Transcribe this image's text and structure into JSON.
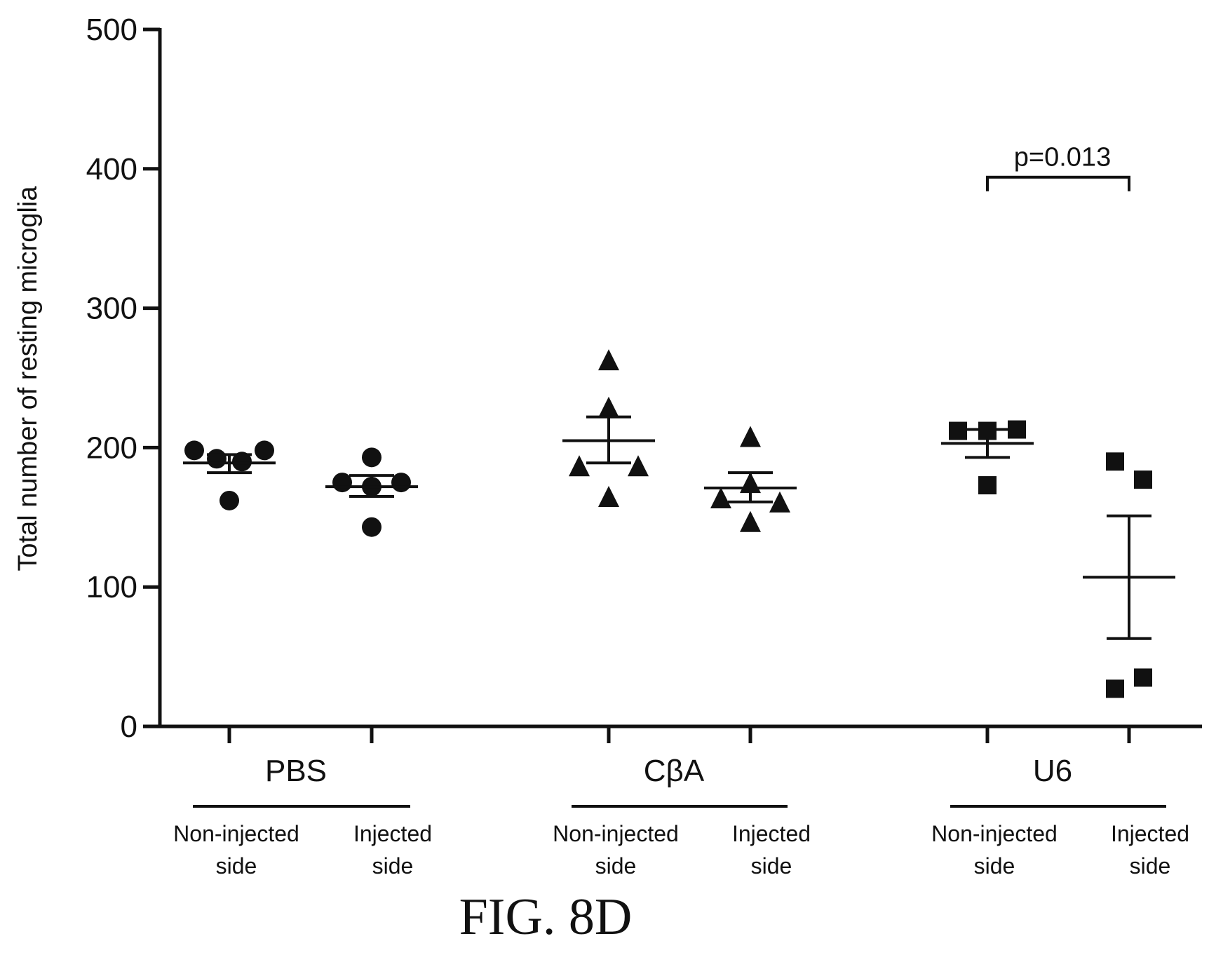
{
  "chart_data": {
    "type": "scatter",
    "ylabel": "Total number of resting microglia",
    "ylim": [
      0,
      500
    ],
    "yticks": [
      0,
      100,
      200,
      300,
      400,
      500
    ],
    "grid": false,
    "groups": [
      {
        "label": "PBS",
        "marker": "circle",
        "conditions": [
          {
            "label_line1": "Non-injected",
            "label_line2": "side",
            "points": [
              198,
              192,
              190,
              198,
              162
            ],
            "mean": 189,
            "sem_low": 182,
            "sem_high": 195
          },
          {
            "label_line1": "Injected",
            "label_line2": "side",
            "points": [
              175,
              193,
              172,
              175,
              143
            ],
            "mean": 172,
            "sem_low": 165,
            "sem_high": 180
          }
        ]
      },
      {
        "label": "CβA",
        "marker": "triangle",
        "conditions": [
          {
            "label_line1": "Non-injected",
            "label_line2": "side",
            "points": [
              262,
              228,
              186,
              186,
              164
            ],
            "mean": 205,
            "sem_low": 189,
            "sem_high": 222
          },
          {
            "label_line1": "Injected",
            "label_line2": "side",
            "points": [
              207,
              174,
              163,
              160,
              146
            ],
            "mean": 171,
            "sem_low": 161,
            "sem_high": 182
          }
        ]
      },
      {
        "label": "U6",
        "marker": "square",
        "conditions": [
          {
            "label_line1": "Non-injected",
            "label_line2": "side",
            "points": [
              212,
              212,
              213,
              173
            ],
            "mean": 203,
            "sem_low": 193,
            "sem_high": 213
          },
          {
            "label_line1": "Injected",
            "label_line2": "side",
            "points": [
              190,
              177,
              35,
              27
            ],
            "mean": 107,
            "sem_low": 63,
            "sem_high": 151
          }
        ]
      }
    ],
    "annotations": [
      {
        "text": "p=0.013",
        "group_index": 2,
        "y": 395
      }
    ]
  },
  "figure_label": "FIG. 8D"
}
